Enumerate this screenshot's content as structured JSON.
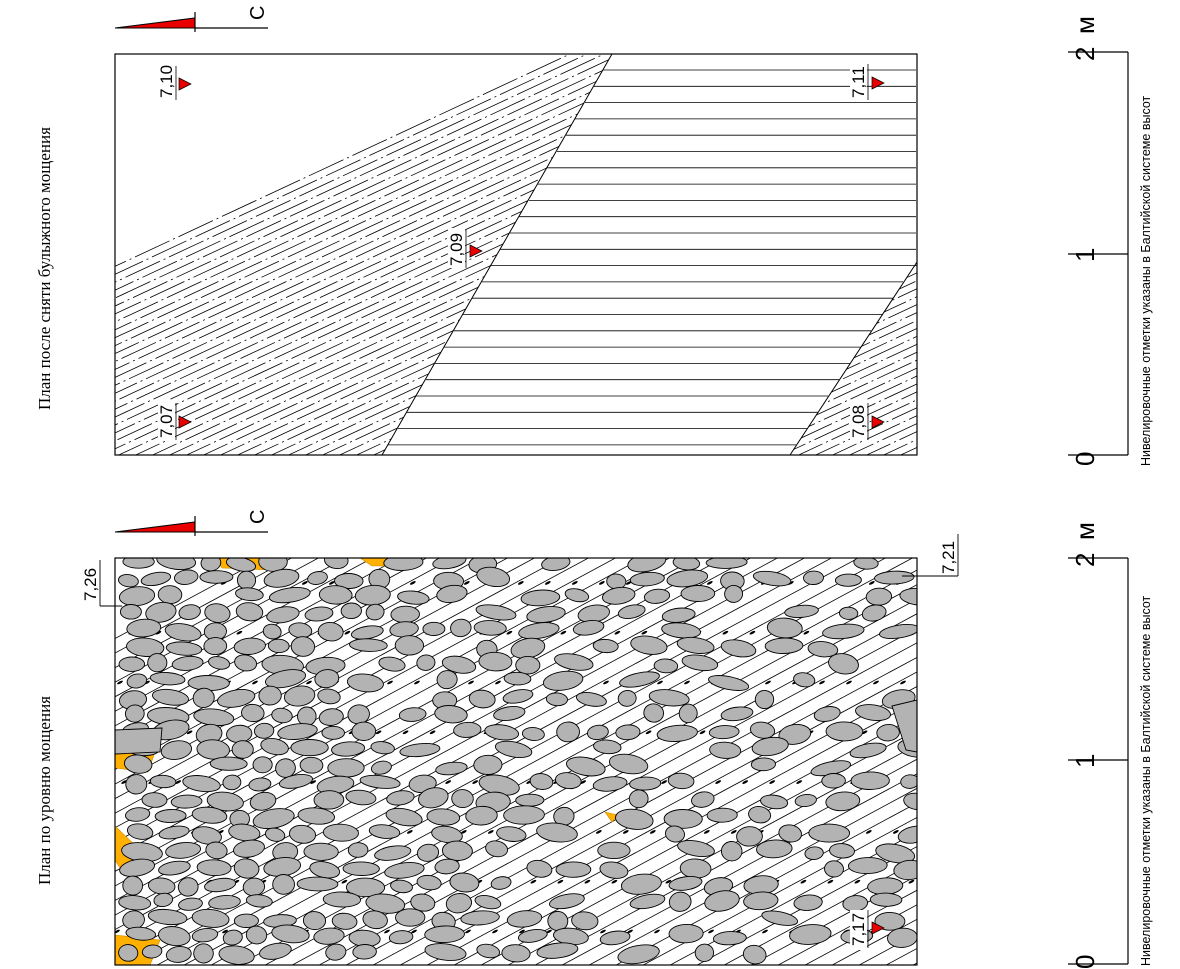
{
  "plans": [
    {
      "id": "plan-after-removal",
      "title": "План после сняти булыжного мощения",
      "north_label": "С",
      "zones": [
        "dashed-diagonal",
        "horizontal-lines"
      ],
      "levels": [
        {
          "id": "a",
          "value": "7,10"
        },
        {
          "id": "b",
          "value": "7,11"
        },
        {
          "id": "c",
          "value": "7,09"
        },
        {
          "id": "d",
          "value": "7,07"
        },
        {
          "id": "e",
          "value": "7,08"
        }
      ],
      "scale": {
        "ticks": [
          "0",
          "1",
          "2"
        ],
        "unit": "м"
      },
      "note": "Нивелировочные отметки указаны в Балтийской системе высот"
    },
    {
      "id": "plan-paving-level",
      "title": "План по уровню мощения",
      "north_label": "С",
      "levels": [
        {
          "id": "a",
          "value": "7,26"
        },
        {
          "id": "b",
          "value": "7,21"
        },
        {
          "id": "c",
          "value": "7,17"
        }
      ],
      "scale": {
        "ticks": [
          "0",
          "1",
          "2"
        ],
        "unit": "м"
      },
      "note": "Нивелировочные отметки указаны в Балтийской системе высот"
    }
  ],
  "colors": {
    "line": "#000000",
    "marker_red": "#e80000",
    "cobble_fill": "#b3b3b3",
    "sand_fill": "#ffb000",
    "background": "#ffffff"
  }
}
